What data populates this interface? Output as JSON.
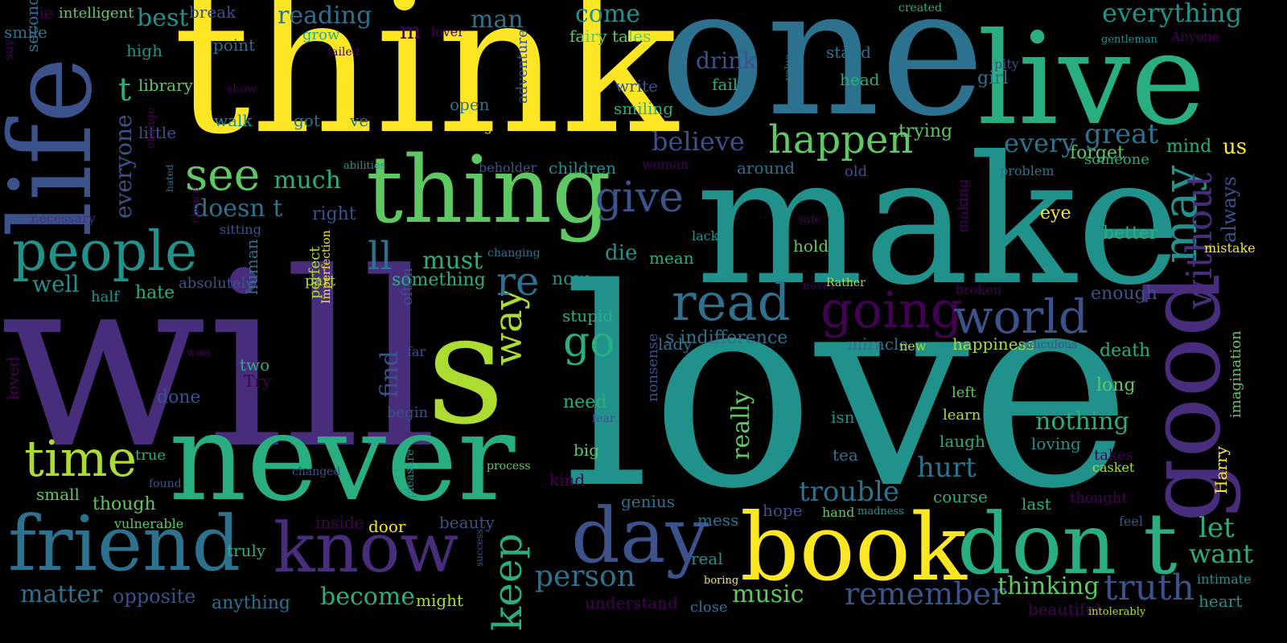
{
  "background": "#000000",
  "palette": {
    "p0": "#440154",
    "p1": "#472d7b",
    "p2": "#3b528b",
    "p3": "#2c728e",
    "p4": "#21918c",
    "p5": "#28ae80",
    "p6": "#5ec962",
    "p7": "#addc30",
    "p8": "#fde725"
  },
  "words": [
    {
      "text": "think",
      "c": "p8"
    },
    {
      "text": "one",
      "c": "p3"
    },
    {
      "text": "live",
      "c": "p5"
    },
    {
      "text": "make",
      "c": "p4"
    },
    {
      "text": "love",
      "c": "p4"
    },
    {
      "text": "will",
      "c": "p1"
    },
    {
      "text": "s",
      "c": "p7"
    },
    {
      "text": "never",
      "c": "p5"
    },
    {
      "text": "life",
      "c": "p2"
    },
    {
      "text": "thing",
      "c": "p6"
    },
    {
      "text": "book",
      "c": "p8"
    },
    {
      "text": "don t",
      "c": "p5"
    },
    {
      "text": "friend",
      "c": "p3"
    },
    {
      "text": "know",
      "c": "p1"
    },
    {
      "text": "day",
      "c": "p2"
    },
    {
      "text": "good",
      "c": "p1"
    },
    {
      "text": "people",
      "c": "p4"
    },
    {
      "text": "time",
      "c": "p7"
    },
    {
      "text": "read",
      "c": "p3"
    },
    {
      "text": "going",
      "c": "p0"
    },
    {
      "text": "world",
      "c": "p2"
    },
    {
      "text": "see",
      "c": "p6"
    },
    {
      "text": "give",
      "c": "p2"
    },
    {
      "text": "happen",
      "c": "p6"
    },
    {
      "text": "go",
      "c": "p5"
    },
    {
      "text": "way",
      "c": "p7"
    },
    {
      "text": "keep",
      "c": "p5"
    },
    {
      "text": "re",
      "c": "p3"
    },
    {
      "text": "may",
      "c": "p4"
    },
    {
      "text": "without",
      "c": "p1"
    },
    {
      "text": "truth",
      "c": "p2"
    },
    {
      "text": "person",
      "c": "p3"
    },
    {
      "text": "trouble",
      "c": "p3"
    },
    {
      "text": "everything",
      "c": "p4"
    },
    {
      "text": "remember",
      "c": "p2"
    },
    {
      "text": "let",
      "c": "p5"
    },
    {
      "text": "want",
      "c": "p5"
    },
    {
      "text": "hurt",
      "c": "p3"
    },
    {
      "text": "nothing",
      "c": "p5"
    },
    {
      "text": "believe",
      "c": "p2"
    },
    {
      "text": "great",
      "c": "p3"
    },
    {
      "text": "every",
      "c": "p3"
    },
    {
      "text": "much",
      "c": "p5"
    },
    {
      "text": "doesn t",
      "c": "p3"
    },
    {
      "text": "must",
      "c": "p5"
    },
    {
      "text": "ll",
      "c": "p3"
    },
    {
      "text": "matter",
      "c": "p3"
    },
    {
      "text": "become",
      "c": "p5"
    },
    {
      "text": "music",
      "c": "p6"
    },
    {
      "text": "thinking",
      "c": "p6"
    },
    {
      "text": "opposite",
      "c": "p2"
    },
    {
      "text": "best",
      "c": "p4"
    },
    {
      "text": "reading",
      "c": "p3"
    },
    {
      "text": "man",
      "c": "p3"
    },
    {
      "text": "come",
      "c": "p4"
    },
    {
      "text": "well",
      "c": "p4"
    },
    {
      "text": "everyone",
      "c": "p2"
    },
    {
      "text": "t",
      "c": "p5"
    },
    {
      "text": "find",
      "c": "p2"
    },
    {
      "text": "really",
      "c": "p6"
    },
    {
      "text": "die",
      "c": "p4"
    },
    {
      "text": "something",
      "c": "p5"
    },
    {
      "text": "s indifference",
      "c": "p3"
    },
    {
      "text": "need",
      "c": "p5"
    },
    {
      "text": "us",
      "c": "p8"
    },
    {
      "text": "always",
      "c": "p2"
    },
    {
      "text": "forget",
      "c": "p6"
    },
    {
      "text": "trying",
      "c": "p6"
    },
    {
      "text": "drink",
      "c": "p2"
    },
    {
      "text": "fail",
      "c": "p5"
    },
    {
      "text": "enough",
      "c": "p2"
    },
    {
      "text": "better",
      "c": "p5"
    },
    {
      "text": "death",
      "c": "p5"
    },
    {
      "text": "hope",
      "c": "p2"
    },
    {
      "text": "understand",
      "c": "p0"
    },
    {
      "text": "genius",
      "c": "p3"
    },
    {
      "text": "kind",
      "c": "p0"
    },
    {
      "text": "big",
      "c": "p6"
    },
    {
      "text": "m",
      "c": "p0"
    },
    {
      "text": "high",
      "c": "p4"
    },
    {
      "text": "point",
      "c": "p3"
    },
    {
      "text": "little",
      "c": "p2"
    },
    {
      "text": "library",
      "c": "p6"
    },
    {
      "text": "walk",
      "c": "p4"
    },
    {
      "text": "got",
      "c": "p3"
    },
    {
      "text": "ve",
      "c": "p3"
    },
    {
      "text": "open",
      "c": "p3"
    },
    {
      "text": "living",
      "c": "p8"
    },
    {
      "text": "smiling",
      "c": "p5"
    },
    {
      "text": "write",
      "c": "p2"
    },
    {
      "text": "fairy tales",
      "c": "p6"
    },
    {
      "text": "adventure",
      "c": "p2"
    },
    {
      "text": "children",
      "c": "p4"
    },
    {
      "text": "beholder",
      "c": "p2"
    },
    {
      "text": "woman",
      "c": "p0"
    },
    {
      "text": "around",
      "c": "p3"
    },
    {
      "text": "old",
      "c": "p2"
    },
    {
      "text": "stand",
      "c": "p3"
    },
    {
      "text": "head",
      "c": "p5"
    },
    {
      "text": "girl",
      "c": "p3"
    },
    {
      "text": "mind",
      "c": "p5"
    },
    {
      "text": "someone",
      "c": "p5"
    },
    {
      "text": "problem",
      "c": "p3"
    },
    {
      "text": "eye",
      "c": "p8"
    },
    {
      "text": "mistake",
      "c": "p8"
    },
    {
      "text": "imagination",
      "c": "p6"
    },
    {
      "text": "Harry",
      "c": "p8"
    },
    {
      "text": "long",
      "c": "p6"
    },
    {
      "text": "left",
      "c": "p6"
    },
    {
      "text": "learn",
      "c": "p7"
    },
    {
      "text": "laugh",
      "c": "p5"
    },
    {
      "text": "loving",
      "c": "p4"
    },
    {
      "text": "isn",
      "c": "p4"
    },
    {
      "text": "tea",
      "c": "p3"
    },
    {
      "text": "course",
      "c": "p5"
    },
    {
      "text": "last",
      "c": "p5"
    },
    {
      "text": "thought",
      "c": "p0"
    },
    {
      "text": "takes",
      "c": "p0"
    },
    {
      "text": "casket",
      "c": "p7"
    },
    {
      "text": "feel",
      "c": "p2"
    },
    {
      "text": "intimate",
      "c": "p4"
    },
    {
      "text": "heart",
      "c": "p4"
    },
    {
      "text": "beautiful",
      "c": "p0"
    },
    {
      "text": "intolerably",
      "c": "p7"
    },
    {
      "text": "happiness",
      "c": "p7"
    },
    {
      "text": "miracle",
      "c": "p3"
    },
    {
      "text": "new",
      "c": "p7"
    },
    {
      "text": "ridiculous",
      "c": "p2"
    },
    {
      "text": "lady",
      "c": "p3"
    },
    {
      "text": "mess",
      "c": "p3"
    },
    {
      "text": "real",
      "c": "p4"
    },
    {
      "text": "boring",
      "c": "p8"
    },
    {
      "text": "close",
      "c": "p3"
    },
    {
      "text": "hand",
      "c": "p6"
    },
    {
      "text": "madness",
      "c": "p4"
    },
    {
      "text": "nonsense",
      "c": "p2"
    },
    {
      "text": "fear",
      "c": "p2"
    },
    {
      "text": "process",
      "c": "p6"
    },
    {
      "text": "stupid",
      "c": "p5"
    },
    {
      "text": "now",
      "c": "p4"
    },
    {
      "text": "mean",
      "c": "p5"
    },
    {
      "text": "lack",
      "c": "p4"
    },
    {
      "text": "hold",
      "c": "p6"
    },
    {
      "text": "making",
      "c": "p0"
    },
    {
      "text": "safe",
      "c": "p0"
    },
    {
      "text": "novel",
      "c": "p0"
    },
    {
      "text": "Rather",
      "c": "p7"
    },
    {
      "text": "broken",
      "c": "p0"
    },
    {
      "text": "pity",
      "c": "p2"
    },
    {
      "text": "gentleman",
      "c": "p4"
    },
    {
      "text": "Anyone",
      "c": "p0"
    },
    {
      "text": "created",
      "c": "p5"
    },
    {
      "text": "value",
      "c": "p3"
    },
    {
      "text": "lie",
      "c": "p0"
    },
    {
      "text": "intelligent",
      "c": "p6"
    },
    {
      "text": "smile",
      "c": "p3"
    },
    {
      "text": "say",
      "c": "p0"
    },
    {
      "text": "second",
      "c": "p3"
    },
    {
      "text": "grow",
      "c": "p5"
    },
    {
      "text": "lover",
      "c": "p0"
    },
    {
      "text": "failed",
      "c": "p0"
    },
    {
      "text": "show",
      "c": "p0"
    },
    {
      "text": "break",
      "c": "p2"
    },
    {
      "text": "abilities",
      "c": "p4"
    },
    {
      "text": "change",
      "c": "p0"
    },
    {
      "text": "hated",
      "c": "p3"
    },
    {
      "text": "necessary",
      "c": "p1"
    },
    {
      "text": "choice",
      "c": "p0"
    },
    {
      "text": "sitting",
      "c": "p2"
    },
    {
      "text": "right",
      "c": "p2"
    },
    {
      "text": "changing",
      "c": "p3"
    },
    {
      "text": "half",
      "c": "p4"
    },
    {
      "text": "hate",
      "c": "p5"
    },
    {
      "text": "absolutely",
      "c": "p2"
    },
    {
      "text": "part",
      "c": "p7"
    },
    {
      "text": "human",
      "c": "p3"
    },
    {
      "text": "perfect",
      "c": "p7"
    },
    {
      "text": "Imperfection",
      "c": "p8"
    },
    {
      "text": "often",
      "c": "p2"
    },
    {
      "text": "far",
      "c": "p2"
    },
    {
      "text": "won",
      "c": "p0"
    },
    {
      "text": "two",
      "c": "p5"
    },
    {
      "text": "Try",
      "c": "p0"
    },
    {
      "text": "done",
      "c": "p2"
    },
    {
      "text": "loved",
      "c": "p0"
    },
    {
      "text": "begin",
      "c": "p2"
    },
    {
      "text": "true",
      "c": "p5"
    },
    {
      "text": "small",
      "c": "p6"
    },
    {
      "text": "found",
      "c": "p2"
    },
    {
      "text": "though",
      "c": "p6"
    },
    {
      "text": "changed",
      "c": "p2"
    },
    {
      "text": "vulnerable",
      "c": "p6"
    },
    {
      "text": "truly",
      "c": "p5"
    },
    {
      "text": "inside",
      "c": "p0"
    },
    {
      "text": "door",
      "c": "p8"
    },
    {
      "text": "pleasure",
      "c": "p4"
    },
    {
      "text": "beauty",
      "c": "p2"
    },
    {
      "text": "anything",
      "c": "p3"
    },
    {
      "text": "might",
      "c": "p7"
    },
    {
      "text": "success",
      "c": "p2"
    }
  ]
}
